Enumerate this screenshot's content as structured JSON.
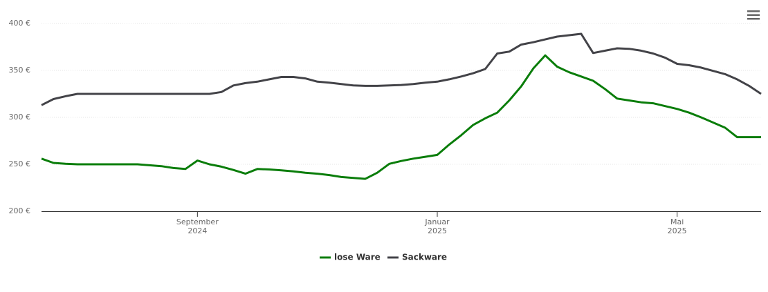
{
  "chart_data": {
    "type": "line",
    "categories": [
      null,
      null,
      null,
      null,
      null,
      null,
      null,
      null,
      null,
      null,
      null,
      null,
      null,
      "September\n2024",
      null,
      null,
      null,
      null,
      null,
      null,
      null,
      null,
      null,
      null,
      null,
      null,
      null,
      null,
      null,
      null,
      null,
      null,
      null,
      "Januar\n2025",
      null,
      null,
      null,
      null,
      null,
      null,
      null,
      null,
      null,
      null,
      null,
      null,
      null,
      null,
      null,
      null,
      null,
      null,
      null,
      "Mai\n2025",
      null,
      null,
      null,
      null,
      null,
      null,
      null
    ],
    "series": [
      {
        "name": "lose Ware",
        "color": "#0a7d0a",
        "values": [
          256,
          251.5,
          250.5,
          250,
          250,
          250,
          250,
          250,
          250,
          249,
          248,
          246,
          245,
          254,
          250,
          247.5,
          244,
          240,
          245,
          244.5,
          243.5,
          242.5,
          241,
          240,
          238.5,
          236.5,
          235.5,
          234.5,
          241,
          250.5,
          253.5,
          256,
          258,
          260,
          271,
          281,
          292,
          299,
          305,
          318,
          333,
          352,
          366,
          354,
          348,
          343.5,
          339,
          330,
          320,
          318,
          316,
          315,
          312,
          309,
          305,
          300,
          294.5,
          289,
          279,
          279,
          279
        ]
      },
      {
        "name": "Sackware",
        "color": "#434348",
        "values": [
          313,
          319.5,
          322.5,
          325,
          325,
          325,
          325,
          325,
          325,
          325,
          325,
          325,
          325,
          325,
          325,
          327,
          334,
          336.5,
          338,
          340.5,
          343,
          343,
          341.5,
          338,
          337,
          335.5,
          334,
          333.5,
          333.5,
          334,
          334.5,
          335.5,
          337,
          338,
          340.5,
          343.5,
          347,
          351.5,
          368,
          370,
          377.5,
          380,
          383,
          386,
          387.5,
          389,
          368.5,
          371,
          373.5,
          373,
          371,
          368,
          363.5,
          357,
          355.5,
          353,
          349.5,
          346,
          340.5,
          333.5,
          325
        ]
      }
    ],
    "ylim": [
      200,
      400
    ],
    "yticks": [
      {
        "value": 200,
        "label": "200 €"
      },
      {
        "value": 250,
        "label": "250 €"
      },
      {
        "value": 300,
        "label": "300 €"
      },
      {
        "value": 350,
        "label": "350 €"
      },
      {
        "value": 400,
        "label": "400 €"
      }
    ],
    "grid": true
  }
}
